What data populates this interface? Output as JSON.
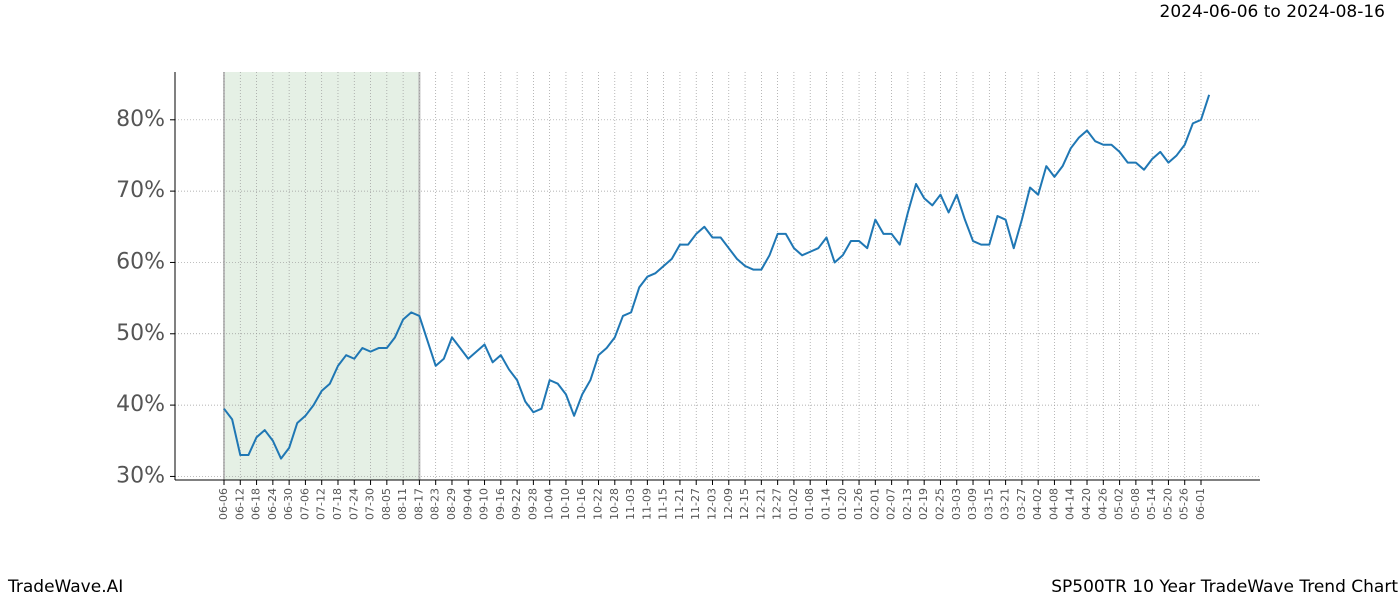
{
  "chart_data": {
    "type": "line",
    "header": "2024-06-06 to 2024-08-16",
    "footer_left": "TradeWave.AI",
    "footer_right": "SP500TR 10 Year TradeWave Trend Chart",
    "color": "#1f77b4",
    "shade_color": "#e5f0e5",
    "shaded_range": {
      "start": "06-06",
      "end": "08-17"
    },
    "grid": true,
    "categories": [
      "06-06",
      null,
      "06-12",
      null,
      "06-18",
      null,
      "06-24",
      null,
      "06-30",
      null,
      "07-06",
      null,
      "07-12",
      null,
      "07-18",
      null,
      "07-24",
      null,
      "07-30",
      null,
      "08-05",
      null,
      "08-11",
      null,
      "08-17",
      null,
      "08-23",
      null,
      "08-29",
      null,
      "09-04",
      null,
      "09-10",
      null,
      "09-16",
      null,
      "09-22",
      null,
      "09-28",
      null,
      "10-04",
      null,
      "10-10",
      null,
      "10-16",
      null,
      "10-22",
      null,
      "10-28",
      null,
      "11-03",
      null,
      "11-09",
      null,
      "11-15",
      null,
      "11-21",
      null,
      "11-27",
      null,
      "12-03",
      null,
      "12-09",
      null,
      "12-15",
      null,
      "12-21",
      null,
      "12-27",
      null,
      "01-02",
      null,
      "01-08",
      null,
      "01-14",
      null,
      "01-20",
      null,
      "01-26",
      null,
      "02-01",
      null,
      "02-07",
      null,
      "02-13",
      null,
      "02-19",
      null,
      "02-25",
      null,
      "03-03",
      null,
      "03-09",
      null,
      "03-15",
      null,
      "03-21",
      null,
      "03-27",
      null,
      "04-02",
      null,
      "04-08",
      null,
      "04-14",
      null,
      "04-20",
      null,
      "04-26",
      null,
      "05-02",
      null,
      "05-08",
      null,
      "05-14",
      null,
      "05-20",
      null,
      "05-26",
      null,
      "06-01",
      null
    ],
    "values": [
      39.5,
      38,
      33,
      33,
      35.5,
      36.5,
      35,
      32.5,
      34,
      37.5,
      38.5,
      40,
      42,
      43,
      45.5,
      47,
      46.5,
      48,
      47.5,
      48,
      48,
      49.5,
      52,
      53,
      52.5,
      49,
      45.5,
      46.5,
      49.5,
      48,
      46.5,
      47.5,
      48.5,
      46,
      47,
      45,
      43.5,
      40.5,
      39,
      39.5,
      43.5,
      43,
      41.5,
      38.5,
      41.5,
      43.5,
      47,
      48,
      49.5,
      52.5,
      53,
      56.5,
      58,
      58.5,
      59.5,
      60.5,
      62.5,
      62.5,
      64,
      65,
      63.5,
      63.5,
      62,
      60.5,
      59.5,
      59,
      59,
      61,
      64,
      64,
      62,
      61,
      61.5,
      62,
      63.5,
      60,
      61,
      63,
      63,
      62,
      66,
      64,
      64,
      62.5,
      67,
      71,
      69,
      68,
      69.5,
      67,
      69.5,
      66,
      63,
      62.5,
      62.5,
      66.5,
      66,
      62,
      66,
      70.5,
      69.5,
      73.5,
      72,
      73.5,
      76,
      77.5,
      78.5,
      77,
      76.5,
      76.5,
      75.5,
      74,
      74,
      73,
      74.5,
      75.5,
      74,
      75,
      76.5,
      79.5,
      80,
      83.5
    ],
    "ylim": [
      29.5,
      86.7
    ],
    "yticks": [
      {
        "value": 30,
        "label": "30%"
      },
      {
        "value": 40,
        "label": "40%"
      },
      {
        "value": 50,
        "label": "50%"
      },
      {
        "value": 60,
        "label": "60%"
      },
      {
        "value": 70,
        "label": "70%"
      },
      {
        "value": 80,
        "label": "80%"
      }
    ]
  }
}
